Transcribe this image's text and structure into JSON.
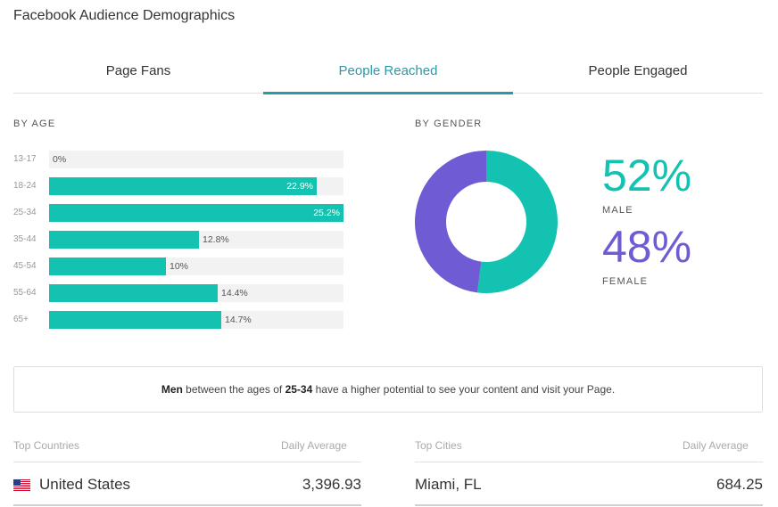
{
  "page_title": "Facebook Audience Demographics",
  "tabs": [
    {
      "label": "Page Fans",
      "active": false
    },
    {
      "label": "People Reached",
      "active": true
    },
    {
      "label": "People Engaged",
      "active": false
    }
  ],
  "by_age": {
    "label": "BY AGE",
    "groups": [
      {
        "label": "13-17",
        "value": 0,
        "text": "0%"
      },
      {
        "label": "18-24",
        "value": 22.9,
        "text": "22.9%"
      },
      {
        "label": "25-34",
        "value": 25.2,
        "text": "25.2%"
      },
      {
        "label": "35-44",
        "value": 12.8,
        "text": "12.8%"
      },
      {
        "label": "45-54",
        "value": 10,
        "text": "10%"
      },
      {
        "label": "55-64",
        "value": 14.4,
        "text": "14.4%"
      },
      {
        "label": "65+",
        "value": 14.7,
        "text": "14.7%"
      }
    ],
    "max_value": 25.2
  },
  "by_gender": {
    "label": "BY GENDER",
    "male": {
      "pct_text": "52%",
      "label": "MALE",
      "value": 52,
      "color": "#13c2b0"
    },
    "female": {
      "pct_text": "48%",
      "label": "FEMALE",
      "value": 48,
      "color": "#6f5bd4"
    }
  },
  "insight": {
    "part1": "Men",
    "part2": " between the ages of ",
    "part3": "25-34",
    "part4": " have a higher potential to see your content and visit your Page."
  },
  "countries": {
    "header": "Top Countries",
    "avg_header": "Daily Average",
    "rows": [
      {
        "name": "United States",
        "value": "3,396.93",
        "flag": "us-flag-icon"
      }
    ]
  },
  "cities": {
    "header": "Top Cities",
    "avg_header": "Daily Average",
    "rows": [
      {
        "name": "Miami, FL",
        "value": "684.25"
      }
    ]
  },
  "colors": {
    "accent": "#2a9aa8",
    "bar": "#13c2b0",
    "female": "#6f5bd4"
  }
}
